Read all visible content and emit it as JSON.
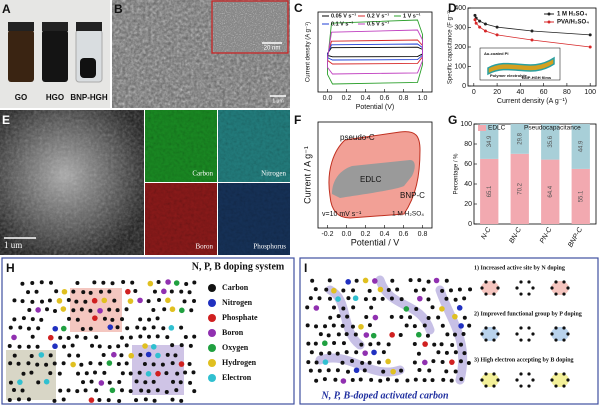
{
  "panel_labels": [
    "A",
    "B",
    "C",
    "D",
    "E",
    "F",
    "G",
    "H",
    "I"
  ],
  "photo_a": {
    "vials": [
      "GO",
      "HGO",
      "BNP-HGH"
    ]
  },
  "sem_b": {
    "inset_scale": "20 nm",
    "scale": "1 μm"
  },
  "tem_e": {
    "scale": "1 um",
    "maps": [
      "Carbon",
      "Nitrogen",
      "Boron",
      "Phosphorus"
    ]
  },
  "chart_data": [
    {
      "type": "cv",
      "x_label": "Potential (V)",
      "y_label": "Current density (A g⁻¹)",
      "xlim": [
        -0.1,
        1.1
      ],
      "ylim": [
        -10,
        10
      ],
      "x": [
        0,
        1
      ],
      "xticks": [
        {
          "value": 0,
          "label": "0.0"
        },
        0.2,
        0.4,
        0.6,
        0.8,
        {
          "value": 1,
          "label": "1.0"
        }
      ],
      "series": [
        {
          "name": "0.05 V s⁻¹",
          "color": "#000000",
          "values": [
            1.2,
            -1.2
          ]
        },
        {
          "name": "0.2 V s⁻¹",
          "color": "#d62728",
          "values": [
            3,
            -3
          ]
        },
        {
          "name": "1 V s⁻¹",
          "color": "#2ca02c",
          "values": [
            8,
            -8
          ]
        },
        {
          "name": "0.1 V s⁻¹",
          "color": "#1f3fd6",
          "values": [
            2,
            -2
          ]
        },
        {
          "name": "0.5 V s⁻¹",
          "color": "#c040c0",
          "values": [
            5.5,
            -5.5
          ]
        }
      ]
    },
    {
      "type": "line",
      "x_label": "Current density (A g⁻¹)",
      "y_label": "Specific capacitance (F g⁻¹)",
      "xlim": [
        -5,
        105
      ],
      "ylim": [
        0,
        400
      ],
      "xticks": [
        0,
        20,
        40,
        60,
        80,
        100
      ],
      "yticks": [
        0,
        100,
        200,
        300,
        400
      ],
      "x": [
        1,
        2,
        5,
        10,
        20,
        50,
        100
      ],
      "series": [
        {
          "name": "1 M H₂SO₄",
          "color": "#222222",
          "values": [
            362,
            348,
            333,
            318,
            302,
            282,
            262
          ]
        },
        {
          "name": "PVA/H₂SO₄",
          "color": "#d62728",
          "values": [
            340,
            322,
            302,
            282,
            262,
            236,
            200
          ]
        }
      ],
      "legend": "upper right",
      "inset": [
        "Au-coated PI",
        "Polymer electrolyte",
        "BNP-HGH films"
      ]
    },
    {
      "type": "cv_area",
      "x_label": "Potential / V",
      "y_label": "Current / A g⁻¹",
      "xlim": [
        -0.3,
        0.9
      ],
      "xticks": [
        -0.2,
        {
          "value": 0,
          "label": "0.0"
        },
        0.2,
        0.4,
        0.6,
        0.8
      ],
      "annotations": [
        "pseudo-C",
        "EDLC",
        "BNP-C",
        "v=10 mV s⁻¹",
        "1 M H₂SO₄"
      ]
    },
    {
      "type": "stacked_bar",
      "y_label": "Percentage / %",
      "categories": [
        "N-C",
        "BN-C",
        "PN-C",
        "BNP-C"
      ],
      "ylim": [
        0,
        100
      ],
      "yticks": [
        0,
        20,
        40,
        60,
        80,
        100
      ],
      "series": [
        {
          "name": "EDLC",
          "color": "#f2a9b0",
          "values": [
            65.1,
            70.2,
            64.4,
            55.1
          ]
        },
        {
          "name": "Pseudocapacitance",
          "color": "#a8cfd8",
          "values": [
            34.9,
            29.8,
            35.6,
            44.9
          ]
        }
      ]
    }
  ],
  "diagram_h": {
    "title": "N, P, B doping system",
    "legend": [
      {
        "name": "Carbon",
        "color": "#111111"
      },
      {
        "name": "Nitrogen",
        "color": "#2030c0"
      },
      {
        "name": "Phosphate",
        "color": "#d02020"
      },
      {
        "name": "Boron",
        "color": "#9030b0"
      },
      {
        "name": "Oxygen",
        "color": "#20a040"
      },
      {
        "name": "Hydrogen",
        "color": "#e0c020"
      },
      {
        "name": "Electron",
        "color": "#30c0d0"
      }
    ]
  },
  "diagram_i": {
    "title": "N, P, B-doped activated carbon",
    "points": [
      "1) Increased active site by N doping",
      "2) Improved functional group by P doping",
      "3) High electron accepting by B doping"
    ]
  }
}
